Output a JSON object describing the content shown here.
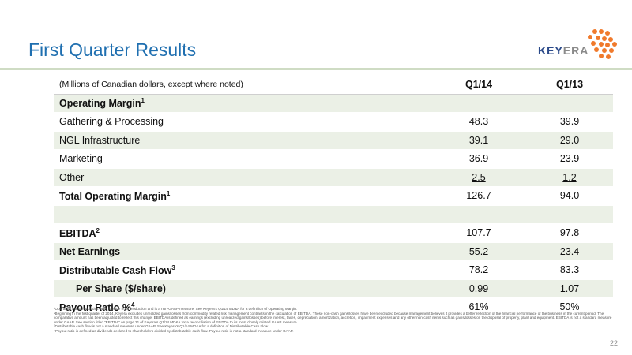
{
  "slide": {
    "title": "First Quarter Results",
    "page_number": "22"
  },
  "logo": {
    "text_a": "KEY",
    "text_b": "ERA"
  },
  "table": {
    "units_label": "(Millions of Canadian dollars, except where noted)",
    "col1": "Q1/14",
    "col2": "Q1/13",
    "rows": [
      {
        "label": "Operating Margin",
        "sup": "1",
        "v1": "",
        "v2": ""
      },
      {
        "label": "Gathering & Processing",
        "sup": "",
        "v1": "48.3",
        "v2": "39.9"
      },
      {
        "label": "NGL Infrastructure",
        "sup": "",
        "v1": "39.1",
        "v2": "29.0"
      },
      {
        "label": "Marketing",
        "sup": "",
        "v1": "36.9",
        "v2": "23.9"
      },
      {
        "label": "Other",
        "sup": "",
        "v1": "2.5",
        "v2": "1.2"
      },
      {
        "label": "Total Operating Margin",
        "sup": "1",
        "v1": "126.7",
        "v2": "94.0"
      },
      {
        "label": "",
        "sup": "",
        "v1": "",
        "v2": ""
      },
      {
        "label": "EBITDA",
        "sup": "2",
        "v1": "107.7",
        "v2": "97.8"
      },
      {
        "label": "Net Earnings",
        "sup": "",
        "v1": "55.2",
        "v2": "23.4"
      },
      {
        "label": "Distributable Cash Flow",
        "sup": "3",
        "v1": "78.2",
        "v2": "83.3"
      },
      {
        "label": "Per Share ($/share)",
        "sup": "",
        "v1": "0.99",
        "v2": "1.07"
      },
      {
        "label": "Payout Ratio %",
        "sup": "4",
        "v1": "61%",
        "v2": "50%"
      }
    ]
  },
  "footnotes": [
    "¹Operating margin excludes other income from production and is a non-GAAP measure. See Keyera's Q1/14 MD&A for a definition of Operating Margin.",
    "²Beginning in the first quarter of 2014, Keyera excludes unrealized gains/losses from commodity related risk management contracts in the calculation of EBITDA. These non-cash gains/losses have been excluded because management believes it provides a better reflection of the financial performance of the business in the current period. The comparative amount has been adjusted to reflect this change. EBITDA is defined as earnings (excluding unrealized gains/losses) before interest, taxes, depreciation, amortization, accretion, impairment expenses and any other non-cash items such as gains/losses on the disposal of property, plant and equipment. EBITDA is not a standard measure under GAAP. See section titled \"EBITDA\" on page 31 of Keyera's Q1/14 MD&A for a reconciliation of EBITDA to its most closely related GAAP measure.",
    "³Distributable cash flow is not a standard measure under GAAP. See Keyera's Q1/14 MD&A for a definition of Distributable Cash Flow.",
    "⁴Payout ratio is defined as dividends declared to shareholders divided by distributable cash flow. Payout ratio is not a standard measure under GAAP."
  ]
}
